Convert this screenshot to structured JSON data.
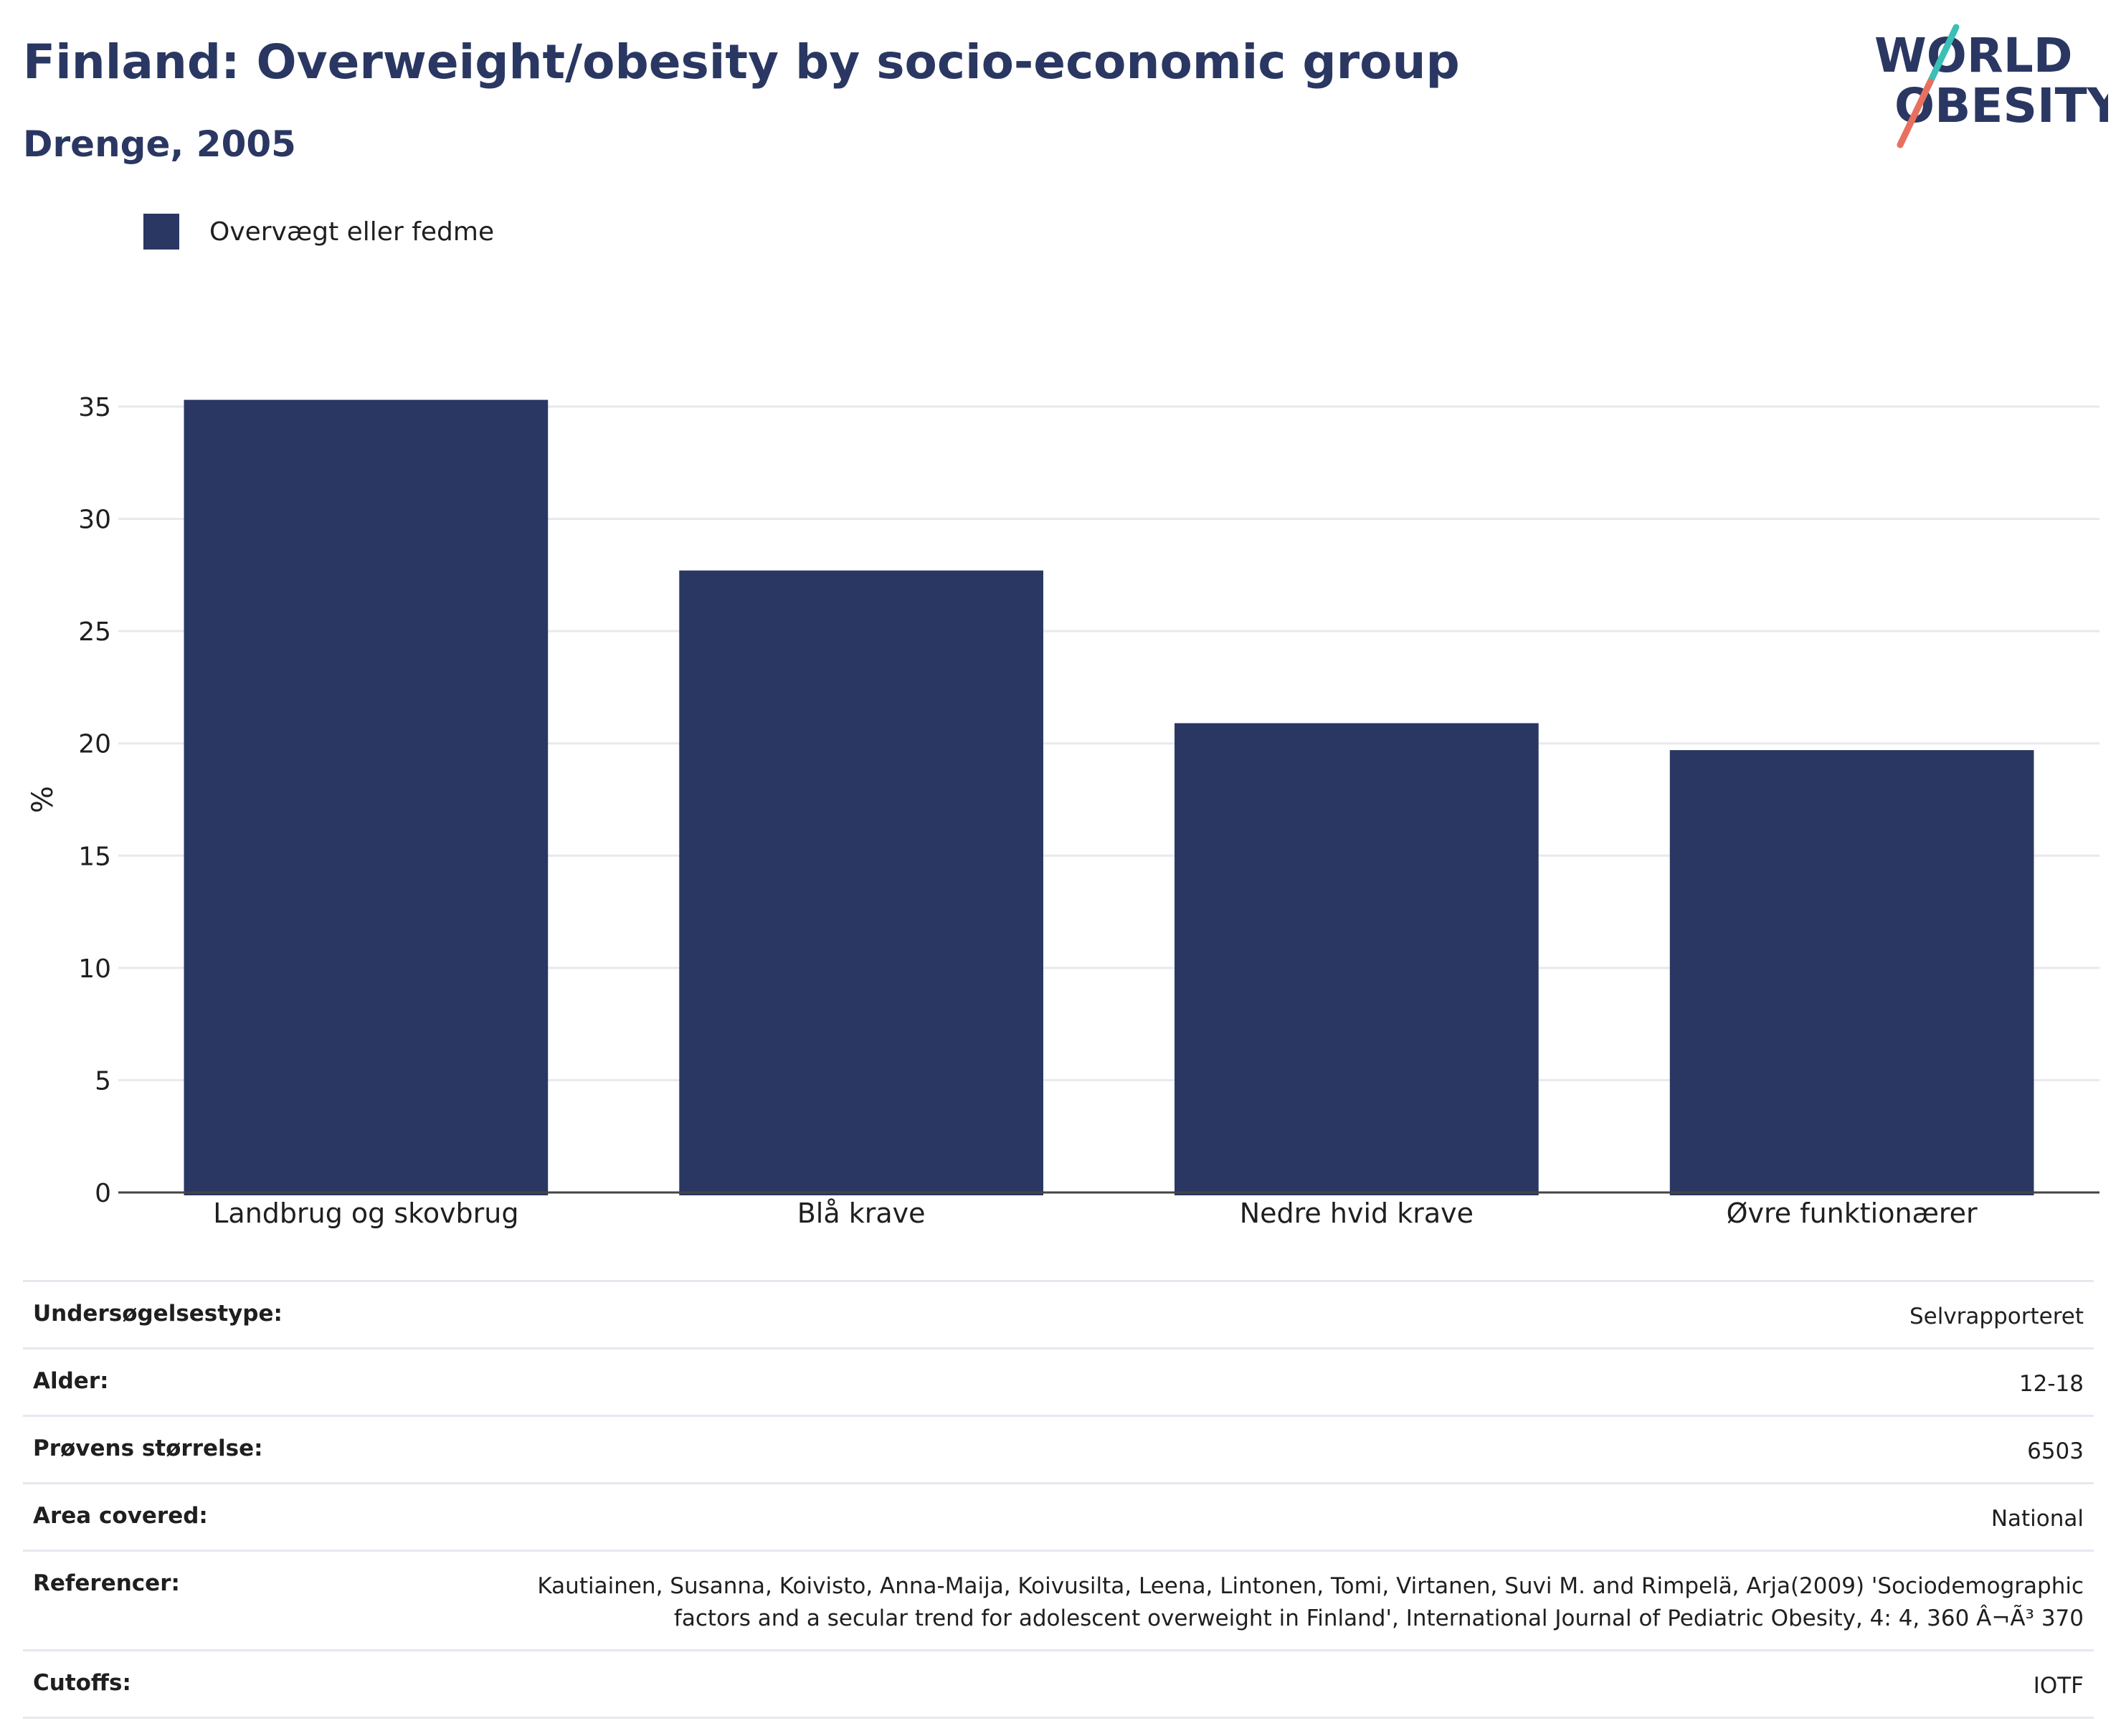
{
  "header": {
    "title": "Finland: Overweight/obesity by socio-economic group",
    "subtitle": "Drenge, 2005"
  },
  "logo": {
    "line1": "WORLD",
    "line2": "OBESITY"
  },
  "colors": {
    "bar": "#2a3762",
    "text": "#2a3762",
    "grid": "#e8e8ee",
    "logo_teal": "#3bbfb6",
    "logo_coral": "#e8705f"
  },
  "chart_data": {
    "type": "bar",
    "categories": [
      "Landbrug og skovbrug",
      "Blå krave",
      "Nedre hvid krave",
      "Øvre funktionærer"
    ],
    "series": [
      {
        "name": "Overvægt eller fedme",
        "values": [
          35.3,
          27.7,
          20.9,
          19.7
        ]
      }
    ],
    "ylabel": "%",
    "ylim": [
      0,
      35
    ],
    "yticks": [
      0,
      5,
      10,
      15,
      20,
      25,
      30,
      35
    ],
    "grid": true,
    "legend": "top-left"
  },
  "meta": [
    {
      "label": "Undersøgelsestype:",
      "value": "Selvrapporteret"
    },
    {
      "label": "Alder:",
      "value": "12-18"
    },
    {
      "label": "Prøvens størrelse:",
      "value": "6503"
    },
    {
      "label": "Area covered:",
      "value": "National"
    },
    {
      "label": "Referencer:",
      "value": "Kautiainen, Susanna, Koivisto, Anna-Maija, Koivusilta, Leena, Lintonen, Tomi, Virtanen, Suvi M. and Rimpelä, Arja(2009) 'Sociodemographic factors and a secular trend for adolescent overweight in Finland', International Journal of Pediatric Obesity, 4: 4, 360 Â¬Ã³ 370"
    },
    {
      "label": "Cutoffs:",
      "value": "IOTF"
    }
  ]
}
